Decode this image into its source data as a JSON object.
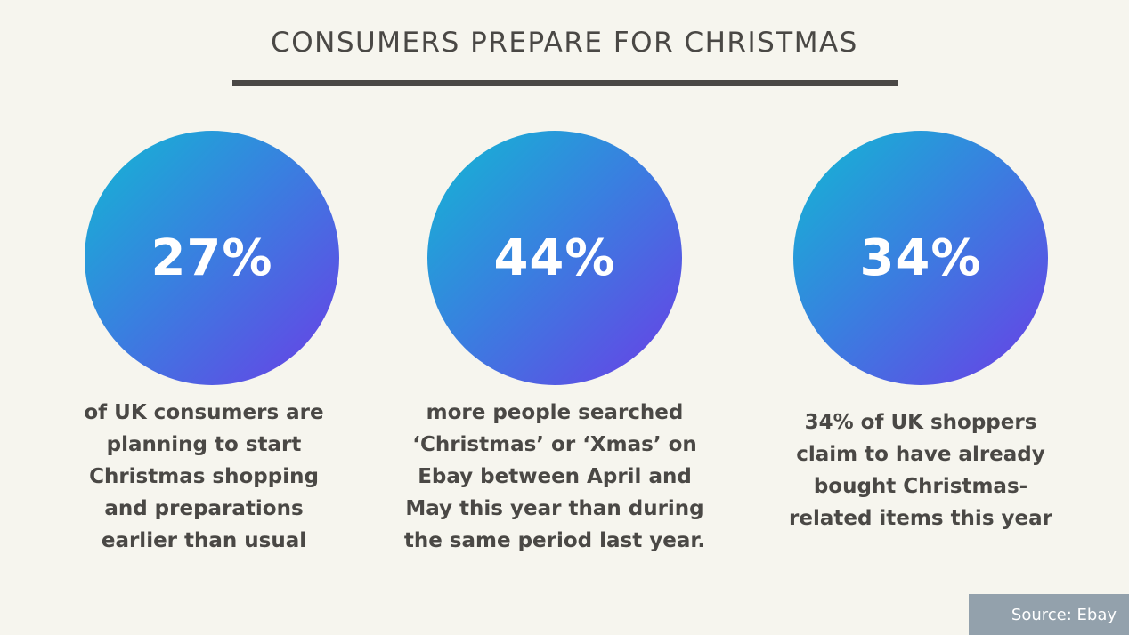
{
  "title": "CONSUMERS PREPARE FOR CHRISTMAS",
  "stats": [
    {
      "value": "27%",
      "description": "of UK consumers are\nplanning to start\nChristmas shopping\nand preparations\nearlier than usual"
    },
    {
      "value": "44%",
      "description": "more people searched\n‘Christmas’ or ‘Xmas’ on\nEbay between April and\nMay this year than during\nthe same period last year."
    },
    {
      "value": "34%",
      "description": "34% of UK shoppers\nclaim to have already\nbought Christmas-\nrelated items this year"
    }
  ],
  "source": "Source: Ebay",
  "colors": {
    "background": "#f6f5ee",
    "text": "#4a4845",
    "gradient_start": "#12b8d3",
    "gradient_end": "#6a3ee6",
    "source_bg": "#93a1ac"
  }
}
